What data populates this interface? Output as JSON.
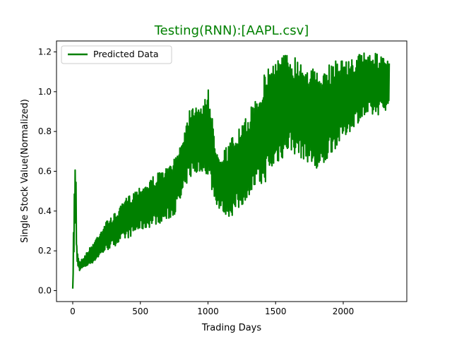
{
  "chart_data": {
    "type": "line",
    "title": "Testing(RNN):[AAPL.csv]",
    "xlabel": "Trading Days",
    "ylabel": "Single Stock Value(Normalized)",
    "xlim": [
      -120,
      2470
    ],
    "ylim": [
      -0.055,
      1.255
    ],
    "xticks": [
      0,
      500,
      1000,
      1500,
      2000
    ],
    "yticks": [
      0.0,
      0.2,
      0.4,
      0.6,
      0.8,
      1.0,
      1.2
    ],
    "xtick_labels": [
      "0",
      "500",
      "1000",
      "1500",
      "2000"
    ],
    "ytick_labels": [
      "0.0",
      "0.2",
      "0.4",
      "0.6",
      "0.8",
      "1.0",
      "1.2"
    ],
    "grid": false,
    "legend_position": "top-left",
    "colors": {
      "series": "#008000",
      "title": "#008000",
      "axes": "#000000"
    },
    "series": [
      {
        "name": "Predicted Data",
        "envelope_x": [
          0,
          10,
          15,
          20,
          25,
          30,
          40,
          50,
          70,
          100,
          150,
          200,
          250,
          300,
          350,
          400,
          450,
          500,
          550,
          600,
          650,
          700,
          750,
          800,
          850,
          880,
          920,
          950,
          970,
          985,
          1000,
          1020,
          1050,
          1080,
          1100,
          1130,
          1160,
          1200,
          1250,
          1300,
          1350,
          1400,
          1450,
          1500,
          1550,
          1600,
          1650,
          1700,
          1750,
          1800,
          1830,
          1850,
          1900,
          1950,
          2000,
          2050,
          2100,
          2150,
          2200,
          2250,
          2300,
          2340
        ],
        "lower": [
          0.01,
          0.2,
          0.3,
          0.36,
          0.24,
          0.14,
          0.12,
          0.1,
          0.11,
          0.12,
          0.14,
          0.17,
          0.2,
          0.22,
          0.24,
          0.26,
          0.28,
          0.3,
          0.31,
          0.33,
          0.34,
          0.35,
          0.38,
          0.44,
          0.55,
          0.57,
          0.58,
          0.6,
          0.6,
          0.59,
          0.57,
          0.52,
          0.45,
          0.41,
          0.39,
          0.38,
          0.37,
          0.38,
          0.42,
          0.48,
          0.5,
          0.52,
          0.57,
          0.62,
          0.66,
          0.7,
          0.68,
          0.66,
          0.64,
          0.58,
          0.57,
          0.6,
          0.68,
          0.72,
          0.76,
          0.8,
          0.84,
          0.86,
          0.87,
          0.88,
          0.9,
          0.92
        ],
        "upper": [
          0.01,
          0.5,
          0.6,
          0.65,
          0.6,
          0.24,
          0.17,
          0.15,
          0.16,
          0.19,
          0.24,
          0.3,
          0.35,
          0.38,
          0.42,
          0.47,
          0.5,
          0.53,
          0.55,
          0.58,
          0.6,
          0.62,
          0.66,
          0.76,
          0.88,
          0.97,
          0.95,
          0.91,
          0.95,
          1.0,
          1.06,
          0.94,
          0.76,
          0.72,
          0.7,
          0.72,
          0.75,
          0.8,
          0.83,
          0.89,
          0.98,
          1.06,
          1.15,
          1.18,
          1.19,
          1.2,
          1.18,
          1.17,
          1.14,
          1.1,
          1.11,
          1.08,
          1.14,
          1.17,
          1.17,
          1.16,
          1.18,
          1.21,
          1.2,
          1.19,
          1.17,
          1.15
        ]
      }
    ]
  }
}
